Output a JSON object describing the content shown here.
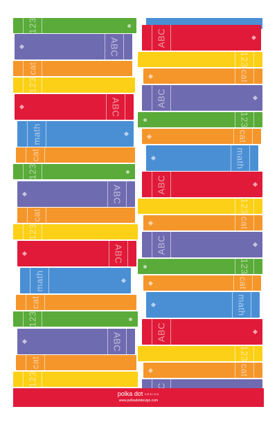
{
  "colors": {
    "green": "#5aab3a",
    "purple": "#6f6bb0",
    "orange": "#f5962b",
    "yellow": "#fcd016",
    "red": "#e01a38",
    "blue": "#4a8fd4"
  },
  "labels": {
    "abc": "ABC",
    "num": "123",
    "cat": "cat",
    "math": "math"
  },
  "footer": {
    "brand": "polka dot",
    "design": "DESIGN",
    "website": "www.polkadotdesign.com"
  }
}
